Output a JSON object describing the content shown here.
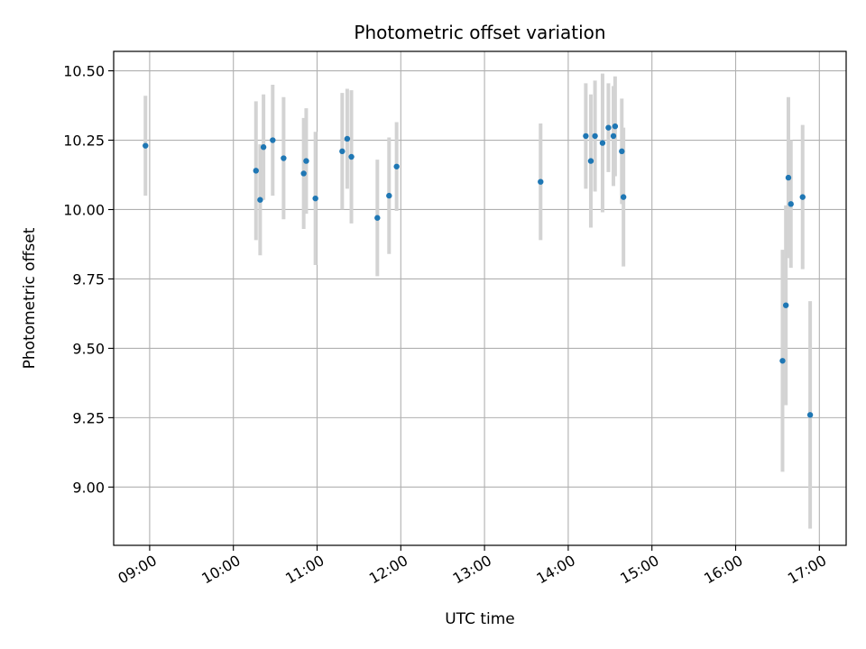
{
  "chart_data": {
    "type": "scatter",
    "title": "Photometric offset variation",
    "xlabel": "UTC time",
    "ylabel": "Photometric offset",
    "x_unit": "UTC hours",
    "xlim": [
      8.57,
      17.32
    ],
    "ylim": [
      8.79,
      10.57
    ],
    "x_ticks": [
      9,
      10,
      11,
      12,
      13,
      14,
      15,
      16,
      17
    ],
    "x_tick_labels": [
      "09:00",
      "10:00",
      "11:00",
      "12:00",
      "13:00",
      "14:00",
      "15:00",
      "16:00",
      "17:00"
    ],
    "y_ticks": [
      9.0,
      9.25,
      9.5,
      9.75,
      10.0,
      10.25,
      10.5
    ],
    "y_tick_labels": [
      "9.00",
      "9.25",
      "9.50",
      "9.75",
      "10.00",
      "10.25",
      "10.50"
    ],
    "grid": true,
    "marker_color": "#1f77b4",
    "errorbar_color": "#d3d3d3",
    "points": [
      {
        "x": 8.95,
        "y": 10.23,
        "err": 0.18
      },
      {
        "x": 10.27,
        "y": 10.14,
        "err": 0.25
      },
      {
        "x": 10.32,
        "y": 10.035,
        "err": 0.2
      },
      {
        "x": 10.36,
        "y": 10.225,
        "err": 0.19
      },
      {
        "x": 10.47,
        "y": 10.25,
        "err": 0.2
      },
      {
        "x": 10.6,
        "y": 10.185,
        "err": 0.22
      },
      {
        "x": 10.84,
        "y": 10.13,
        "err": 0.2
      },
      {
        "x": 10.87,
        "y": 10.175,
        "err": 0.19
      },
      {
        "x": 10.98,
        "y": 10.04,
        "err": 0.24
      },
      {
        "x": 11.3,
        "y": 10.21,
        "err": 0.21
      },
      {
        "x": 11.36,
        "y": 10.255,
        "err": 0.18
      },
      {
        "x": 11.41,
        "y": 10.19,
        "err": 0.24
      },
      {
        "x": 11.72,
        "y": 9.97,
        "err": 0.21
      },
      {
        "x": 11.86,
        "y": 10.05,
        "err": 0.21
      },
      {
        "x": 11.95,
        "y": 10.155,
        "err": 0.16
      },
      {
        "x": 13.67,
        "y": 10.1,
        "err": 0.21
      },
      {
        "x": 14.21,
        "y": 10.265,
        "err": 0.19
      },
      {
        "x": 14.27,
        "y": 10.175,
        "err": 0.24
      },
      {
        "x": 14.32,
        "y": 10.265,
        "err": 0.2
      },
      {
        "x": 14.41,
        "y": 10.24,
        "err": 0.25
      },
      {
        "x": 14.48,
        "y": 10.295,
        "err": 0.16
      },
      {
        "x": 14.54,
        "y": 10.265,
        "err": 0.18
      },
      {
        "x": 14.56,
        "y": 10.3,
        "err": 0.18
      },
      {
        "x": 14.64,
        "y": 10.21,
        "err": 0.19
      },
      {
        "x": 14.66,
        "y": 10.045,
        "err": 0.25
      },
      {
        "x": 16.56,
        "y": 9.455,
        "err": 0.4
      },
      {
        "x": 16.6,
        "y": 9.655,
        "err": 0.36
      },
      {
        "x": 16.63,
        "y": 10.115,
        "err": 0.29
      },
      {
        "x": 16.66,
        "y": 10.02,
        "err": 0.23
      },
      {
        "x": 16.8,
        "y": 10.045,
        "err": 0.26
      },
      {
        "x": 16.89,
        "y": 9.26,
        "err": 0.41
      }
    ]
  }
}
